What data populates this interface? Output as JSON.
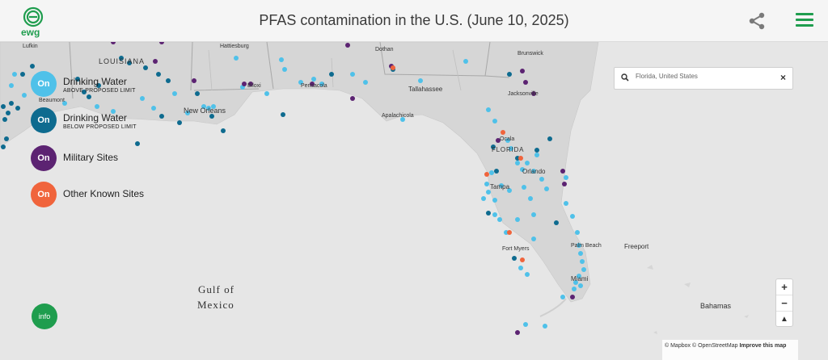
{
  "header": {
    "logo_text": "ewg",
    "title": "PFAS contamination in the U.S. (June 10, 2025)"
  },
  "legend": [
    {
      "button": "On",
      "label": "Drinking Water",
      "sublabel": "ABOVE PROPOSED LIMIT",
      "color": "#4fc1e9"
    },
    {
      "button": "On",
      "label": "Drinking Water",
      "sublabel": "BELOW PROPOSED LIMIT",
      "color": "#0e6b8f"
    },
    {
      "button": "On",
      "label": "Military Sites",
      "sublabel": "",
      "color": "#5c2372"
    },
    {
      "button": "On",
      "label": "Other Known Sites",
      "sublabel": "",
      "color": "#f0643c"
    }
  ],
  "search": {
    "value": "Florida, United States",
    "clear": "×"
  },
  "zoom": {
    "in": "+",
    "out": "−",
    "compass": "▲"
  },
  "info_label": "info",
  "attribution": {
    "mapbox": "© Mapbox",
    "osm": "© OpenStreetMap",
    "improve": "Improve this map"
  },
  "map_labels": {
    "states": [
      "LOUISIANA",
      "FLORIDA"
    ],
    "cities": [
      "Hattiesburg",
      "Lufkin",
      "Dothan",
      "Brunswick",
      "Tallahassee",
      "Jacksonville",
      "Apalachicola",
      "New Orleans",
      "Beaumont",
      "Ocala",
      "Orlando",
      "Tampa",
      "Fort Myers",
      "Palm Beach",
      "Miami",
      "Freeport",
      "Bahamas",
      "Biloxi",
      "Pensacola"
    ],
    "water": [
      "Gulf of",
      "Mexico"
    ]
  },
  "colors": {
    "brand_green": "#1f9d4e",
    "above_limit": "#4fc1e9",
    "below_limit": "#0e6b8f",
    "military": "#5c2372",
    "other": "#f0643c"
  }
}
